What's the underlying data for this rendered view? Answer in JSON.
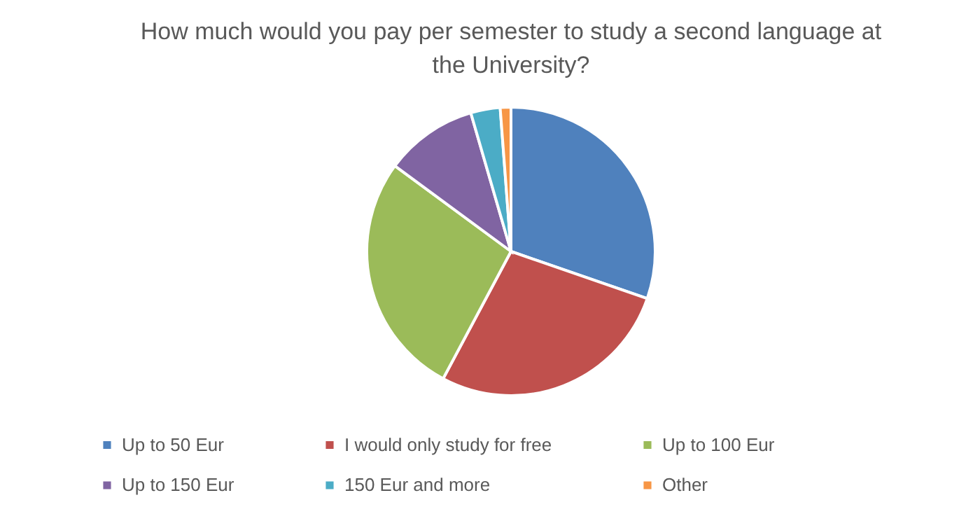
{
  "chart_data": {
    "type": "pie",
    "title": "How much would you pay per semester to study a second language at the University?",
    "categories": [
      "Up to 50 Eur",
      "I would only study for free",
      "Up to 100 Eur",
      "Up to 150 Eur",
      "150 Eur and more",
      "Other"
    ],
    "values": [
      30.3,
      27.5,
      27.3,
      10.4,
      3.3,
      1.2
    ],
    "colors": [
      "#4f81bd",
      "#c0504d",
      "#9bbb59",
      "#8064a2",
      "#4bacc6",
      "#f79646"
    ],
    "legend": "bottom"
  }
}
